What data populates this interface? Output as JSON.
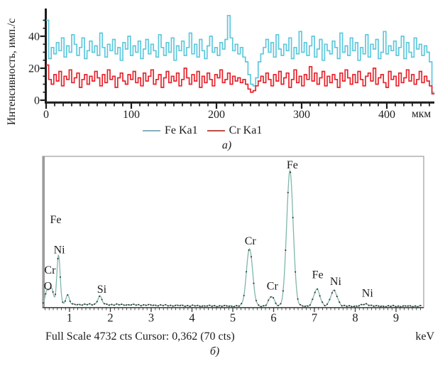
{
  "figure": {
    "panel_a_caption": "а)",
    "panel_b_caption": "б)",
    "background": "#ffffff",
    "text_color": "#1c1c1c"
  },
  "chart_data": [
    {
      "type": "line",
      "panel": "a",
      "description": "X-ray microprobe line-scan intensity profiles",
      "ylabel": "Интенсивность, имп./с",
      "xunit_label": "мкм",
      "xlim": [
        0,
        455
      ],
      "ylim": [
        0,
        55
      ],
      "x_ticks": [
        0,
        100,
        200,
        300,
        400
      ],
      "x_minor_tick_step": 10,
      "y_ticks": [
        0,
        20,
        40
      ],
      "y_minor_tick_step": 5,
      "grid": false,
      "legend_position": "bottom-center",
      "x_step_um": 3,
      "series": [
        {
          "name": "Fe Ka1",
          "color": "#5ec8dd",
          "legend_swatch_color": "#87b0bd",
          "values": [
            50,
            26,
            33,
            29,
            36,
            31,
            39,
            27,
            34,
            30,
            41,
            35,
            28,
            33,
            39,
            26,
            31,
            37,
            30,
            34,
            28,
            42,
            33,
            27,
            35,
            31,
            38,
            29,
            33,
            25,
            36,
            32,
            40,
            28,
            34,
            30,
            37,
            26,
            32,
            38,
            29,
            35,
            31,
            27,
            41,
            33,
            28,
            36,
            30,
            39,
            25,
            34,
            31,
            37,
            28,
            33,
            42,
            29,
            35,
            27,
            38,
            31,
            26,
            34,
            40,
            30,
            33,
            28,
            36,
            32,
            38,
            53,
            39,
            31,
            35,
            29,
            33,
            27,
            24,
            16,
            10,
            9,
            14,
            24,
            29,
            33,
            38,
            30,
            36,
            27,
            41,
            32,
            28,
            35,
            31,
            39,
            26,
            33,
            29,
            43,
            30,
            36,
            28,
            34,
            40,
            27,
            32,
            38,
            25,
            35,
            31,
            29,
            37,
            33,
            26,
            42,
            30,
            34,
            28,
            39,
            31,
            36,
            25,
            33,
            29,
            41,
            27,
            35,
            32,
            38,
            26,
            30,
            43,
            29,
            34,
            31,
            37,
            28,
            33,
            40,
            26,
            36,
            30,
            27,
            39,
            32,
            35,
            28,
            34,
            30,
            24,
            5
          ]
        },
        {
          "name": "Cr Ka1",
          "color": "#e7222b",
          "legend_swatch_color": "#c14b46",
          "values": [
            22,
            13,
            10,
            16,
            12,
            18,
            9,
            15,
            13,
            19,
            11,
            14,
            17,
            8,
            13,
            16,
            10,
            15,
            12,
            18,
            14,
            9,
            16,
            11,
            19,
            13,
            15,
            8,
            14,
            17,
            12,
            10,
            16,
            13,
            18,
            11,
            14,
            9,
            17,
            12,
            15,
            19,
            10,
            13,
            16,
            8,
            14,
            18,
            11,
            15,
            12,
            17,
            9,
            13,
            20,
            14,
            10,
            16,
            12,
            18,
            8,
            15,
            11,
            17,
            13,
            9,
            16,
            14,
            19,
            11,
            13,
            17,
            10,
            15,
            12,
            14,
            11,
            13,
            10,
            7,
            5,
            6,
            9,
            12,
            15,
            11,
            17,
            13,
            9,
            16,
            12,
            18,
            10,
            14,
            17,
            8,
            13,
            19,
            11,
            15,
            9,
            16,
            13,
            21,
            12,
            17,
            10,
            14,
            18,
            9,
            15,
            11,
            16,
            13,
            8,
            17,
            12,
            19,
            14,
            10,
            16,
            11,
            18,
            13,
            9,
            15,
            17,
            12,
            20,
            10,
            14,
            16,
            11,
            8,
            18,
            13,
            15,
            9,
            17,
            11,
            14,
            19,
            12,
            16,
            10,
            13,
            18,
            11,
            15,
            12,
            9,
            4
          ]
        }
      ]
    },
    {
      "type": "area",
      "panel": "b",
      "description": "EDS energy-dispersive X-ray spectrum",
      "footer_text": "Full Scale 4732 cts Cursor: 0,362 (70 cts)",
      "xunit_label": "keV",
      "x_ticks": [
        1,
        2,
        3,
        4,
        5,
        6,
        7,
        8,
        9
      ],
      "x_minor_tick_step": 0.1,
      "xlim": [
        0.34,
        9.66
      ],
      "full_scale_cts": 4732,
      "cursor_keV": "0,362",
      "cursor_cts": 70,
      "line_color": "#7fb7ab",
      "dot_color": "#333333",
      "frame_color": "#9c9c9c",
      "axis_color": "#3c3c3c",
      "baseline": {
        "offset_cts": 38,
        "hump_cts": 52,
        "hump_center_keV": 1.55,
        "hump_width": 4.2
      },
      "peaks": [
        {
          "label": "O",
          "keV": 0.45,
          "sigma": 0.05,
          "cts": 430
        },
        {
          "label": "Cr",
          "keV": 0.56,
          "sigma": 0.05,
          "cts": 490
        },
        {
          "label": "Fe/Ni",
          "keV": 0.73,
          "sigma": 0.04,
          "cts": 1560
        },
        {
          "label": "",
          "keV": 0.95,
          "sigma": 0.045,
          "cts": 300
        },
        {
          "label": "Si",
          "keV": 1.74,
          "sigma": 0.05,
          "cts": 260
        },
        {
          "label": "Cr",
          "keV": 5.41,
          "sigma": 0.075,
          "cts": 1820
        },
        {
          "label": "Cr",
          "keV": 5.95,
          "sigma": 0.07,
          "cts": 300
        },
        {
          "label": "Fe",
          "keV": 6.4,
          "sigma": 0.08,
          "cts": 4250
        },
        {
          "label": "Fe",
          "keV": 7.06,
          "sigma": 0.078,
          "cts": 520
        },
        {
          "label": "Ni",
          "keV": 7.48,
          "sigma": 0.08,
          "cts": 490
        },
        {
          "label": "Ni",
          "keV": 8.26,
          "sigma": 0.09,
          "cts": 65
        }
      ],
      "annotations": [
        {
          "text": "Fe",
          "keV": 0.66,
          "cts": 2650
        },
        {
          "text": "Ni",
          "keV": 0.75,
          "cts": 1700
        },
        {
          "text": "Cr",
          "keV": 0.52,
          "cts": 1060
        },
        {
          "text": "O",
          "keV": 0.47,
          "cts": 560
        },
        {
          "text": "Si",
          "keV": 1.79,
          "cts": 460
        },
        {
          "text": "Cr",
          "keV": 5.43,
          "cts": 1980
        },
        {
          "text": "Cr",
          "keV": 5.97,
          "cts": 560
        },
        {
          "text": "Fe",
          "keV": 6.46,
          "cts": 4360
        },
        {
          "text": "Fe",
          "keV": 7.08,
          "cts": 920
        },
        {
          "text": "Ni",
          "keV": 7.52,
          "cts": 700
        },
        {
          "text": "Ni",
          "keV": 8.3,
          "cts": 330
        }
      ]
    }
  ]
}
